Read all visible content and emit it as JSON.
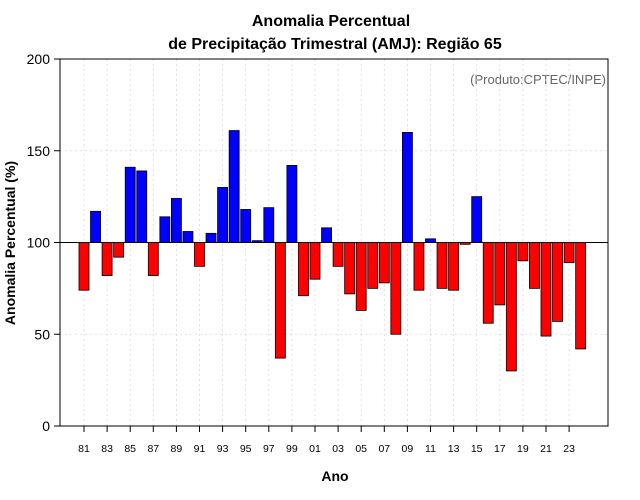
{
  "chart_data": {
    "type": "bar",
    "title_line1": "Anomalia Percentual",
    "title_line2": "de Precipitação Trimestral (AMJ): Região 65",
    "xlabel": "Ano",
    "ylabel": "Anomalia Percentual (%)",
    "credit": "(Produto:CPTEC/INPE)",
    "ylim": [
      0,
      200
    ],
    "yticks": [
      0,
      50,
      100,
      150,
      200
    ],
    "baseline": 100,
    "grid": true,
    "categories": [
      "81",
      "82",
      "83",
      "84",
      "85",
      "86",
      "87",
      "88",
      "89",
      "90",
      "91",
      "92",
      "93",
      "94",
      "95",
      "96",
      "97",
      "98",
      "99",
      "00",
      "01",
      "02",
      "03",
      "04",
      "05",
      "06",
      "07",
      "08",
      "09",
      "10",
      "11",
      "12",
      "13",
      "14",
      "15",
      "16",
      "17",
      "18",
      "19",
      "20",
      "21",
      "22",
      "23",
      "24"
    ],
    "xtick_labels": [
      "81",
      "83",
      "85",
      "87",
      "89",
      "91",
      "93",
      "95",
      "97",
      "99",
      "01",
      "03",
      "05",
      "07",
      "09",
      "11",
      "13",
      "15",
      "17",
      "19",
      "21",
      "23"
    ],
    "values": [
      74,
      117,
      82,
      92,
      141,
      139,
      82,
      114,
      124,
      106,
      87,
      105,
      130,
      161,
      118,
      101,
      119,
      37,
      142,
      71,
      80,
      108,
      87,
      72,
      63,
      75,
      78,
      50,
      160,
      74,
      102,
      75,
      74,
      99,
      125,
      56,
      66,
      30,
      90,
      75,
      49,
      57,
      89,
      42
    ],
    "colors": {
      "above": "#0000ff",
      "below": "#ff0000"
    }
  }
}
